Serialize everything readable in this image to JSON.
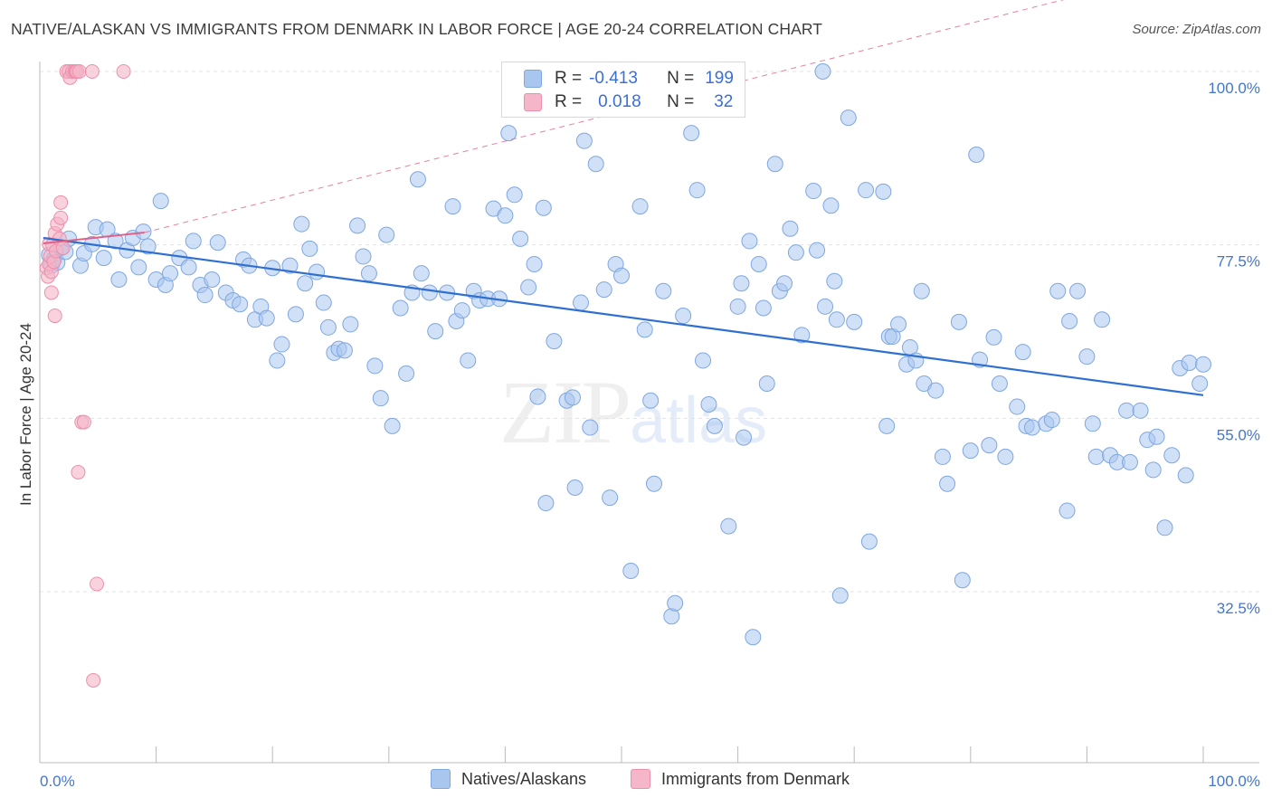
{
  "title": "NATIVE/ALASKAN VS IMMIGRANTS FROM DENMARK IN LABOR FORCE | AGE 20-24 CORRELATION CHART",
  "source": "Source: ZipAtlas.com",
  "watermark": {
    "zip": "ZIP",
    "atlas": "atlas"
  },
  "legend": {
    "r_label": "R =",
    "n_label": "N =",
    "rows": [
      {
        "r": "-0.413",
        "n": "199"
      },
      {
        "r": "0.018",
        "n": "32"
      }
    ]
  },
  "colors": {
    "blue_fill": "#a9c6ee",
    "blue_stroke": "#7fa7e0",
    "blue_line": "#2f6fd1",
    "pink_fill": "#f4b6c8",
    "pink_stroke": "#ec8fab",
    "pink_line": "#e0608a",
    "grid": "#e3e3e3",
    "tick_text": "#4477cc"
  },
  "chart_data": {
    "type": "scatter",
    "title": "NATIVE/ALASKAN VS IMMIGRANTS FROM DENMARK IN LABOR FORCE | AGE 20-24 CORRELATION CHART",
    "xlabel": "",
    "ylabel": "In Labor Force | Age 20-24",
    "xlim": [
      0,
      100
    ],
    "ylim": [
      10,
      102
    ],
    "x_tick_labels": [
      "0.0%",
      "100.0%"
    ],
    "y_ticks": [
      32.5,
      55.0,
      77.5,
      100.0
    ],
    "y_tick_labels": [
      "32.5%",
      "55.0%",
      "77.5%",
      "100.0%"
    ],
    "grid": true,
    "legend_position": "bottom",
    "series": [
      {
        "name": "Natives/Alaskans",
        "trend": {
          "x": [
            0.3,
            100
          ],
          "y": [
            78.4,
            58.0
          ]
        },
        "points": [
          [
            0.8,
            76.2
          ],
          [
            1.0,
            74.8
          ],
          [
            1.2,
            75.6
          ],
          [
            1.5,
            75.2
          ],
          [
            1.8,
            77.1
          ],
          [
            2.2,
            76.6
          ],
          [
            2.5,
            78.3
          ],
          [
            3.5,
            74.8
          ],
          [
            3.8,
            76.4
          ],
          [
            4.5,
            77.6
          ],
          [
            4.8,
            79.8
          ],
          [
            5.5,
            75.8
          ],
          [
            5.8,
            79.5
          ],
          [
            6.5,
            78.0
          ],
          [
            6.8,
            73.0
          ],
          [
            7.5,
            76.8
          ],
          [
            8.0,
            78.4
          ],
          [
            8.5,
            74.6
          ],
          [
            8.9,
            79.2
          ],
          [
            9.3,
            77.3
          ],
          [
            10.0,
            73.0
          ],
          [
            10.4,
            83.2
          ],
          [
            10.8,
            72.3
          ],
          [
            11.2,
            73.8
          ],
          [
            12.0,
            75.8
          ],
          [
            12.8,
            74.6
          ],
          [
            13.2,
            78.0
          ],
          [
            13.8,
            72.3
          ],
          [
            14.2,
            71.0
          ],
          [
            14.8,
            73.0
          ],
          [
            15.3,
            77.8
          ],
          [
            16.0,
            71.3
          ],
          [
            16.6,
            70.3
          ],
          [
            17.2,
            69.8
          ],
          [
            17.5,
            75.6
          ],
          [
            18.0,
            74.8
          ],
          [
            18.5,
            67.8
          ],
          [
            19.0,
            69.5
          ],
          [
            19.5,
            68.0
          ],
          [
            20.0,
            74.5
          ],
          [
            20.4,
            62.5
          ],
          [
            20.8,
            64.6
          ],
          [
            21.5,
            74.8
          ],
          [
            22.0,
            68.5
          ],
          [
            22.5,
            80.2
          ],
          [
            22.8,
            72.5
          ],
          [
            23.2,
            77.0
          ],
          [
            23.8,
            74.0
          ],
          [
            24.4,
            70.0
          ],
          [
            24.8,
            66.8
          ],
          [
            25.3,
            63.5
          ],
          [
            25.7,
            64.0
          ],
          [
            26.2,
            63.8
          ],
          [
            26.7,
            67.2
          ],
          [
            27.3,
            80.0
          ],
          [
            27.8,
            76.0
          ],
          [
            28.3,
            73.8
          ],
          [
            28.8,
            61.8
          ],
          [
            29.3,
            57.6
          ],
          [
            29.8,
            78.8
          ],
          [
            30.3,
            54.0
          ],
          [
            31.0,
            69.3
          ],
          [
            31.5,
            60.8
          ],
          [
            32.0,
            71.3
          ],
          [
            32.5,
            86.0
          ],
          [
            32.8,
            73.8
          ],
          [
            33.5,
            71.3
          ],
          [
            34.0,
            66.3
          ],
          [
            35.0,
            71.3
          ],
          [
            35.5,
            82.5
          ],
          [
            35.8,
            67.6
          ],
          [
            36.3,
            69.0
          ],
          [
            36.8,
            62.5
          ],
          [
            37.3,
            71.5
          ],
          [
            37.8,
            70.3
          ],
          [
            38.5,
            70.5
          ],
          [
            39.0,
            82.2
          ],
          [
            39.5,
            70.5
          ],
          [
            40.0,
            81.3
          ],
          [
            40.3,
            92.0
          ],
          [
            40.8,
            84.0
          ],
          [
            41.3,
            78.3
          ],
          [
            42.0,
            72.0
          ],
          [
            42.5,
            75.0
          ],
          [
            42.8,
            57.8
          ],
          [
            43.3,
            82.3
          ],
          [
            43.5,
            44.0
          ],
          [
            44.2,
            65.0
          ],
          [
            45.3,
            57.3
          ],
          [
            45.8,
            57.7
          ],
          [
            46.0,
            46.0
          ],
          [
            46.5,
            70.0
          ],
          [
            46.8,
            91.0
          ],
          [
            47.3,
            53.8
          ],
          [
            47.8,
            88.0
          ],
          [
            48.5,
            71.7
          ],
          [
            49.0,
            44.7
          ],
          [
            49.5,
            75.0
          ],
          [
            50.0,
            73.5
          ],
          [
            50.8,
            35.2
          ],
          [
            51.6,
            82.5
          ],
          [
            52.0,
            66.5
          ],
          [
            52.5,
            57.3
          ],
          [
            52.8,
            46.5
          ],
          [
            53.6,
            71.5
          ],
          [
            54.3,
            29.3
          ],
          [
            54.6,
            31.0
          ],
          [
            55.3,
            68.3
          ],
          [
            56.0,
            92.0
          ],
          [
            56.5,
            84.6
          ],
          [
            56.6,
            100.0
          ],
          [
            57.0,
            62.5
          ],
          [
            57.5,
            56.8
          ],
          [
            58.0,
            54.0
          ],
          [
            59.2,
            41.0
          ],
          [
            60.0,
            69.5
          ],
          [
            60.3,
            72.5
          ],
          [
            60.5,
            52.5
          ],
          [
            61.0,
            78.0
          ],
          [
            61.3,
            26.6
          ],
          [
            61.8,
            75.0
          ],
          [
            62.2,
            69.3
          ],
          [
            62.5,
            59.5
          ],
          [
            63.2,
            88.0
          ],
          [
            63.6,
            71.5
          ],
          [
            64.0,
            72.5
          ],
          [
            64.5,
            79.6
          ],
          [
            65.0,
            76.5
          ],
          [
            65.5,
            65.8
          ],
          [
            66.5,
            84.5
          ],
          [
            66.8,
            76.8
          ],
          [
            67.3,
            100.0
          ],
          [
            67.5,
            69.5
          ],
          [
            68.0,
            82.6
          ],
          [
            68.3,
            72.8
          ],
          [
            68.5,
            67.8
          ],
          [
            68.8,
            32.0
          ],
          [
            69.5,
            94.0
          ],
          [
            70.0,
            67.5
          ],
          [
            71.0,
            84.6
          ],
          [
            71.3,
            39.0
          ],
          [
            72.5,
            84.4
          ],
          [
            72.8,
            54.0
          ],
          [
            73.0,
            65.6
          ],
          [
            73.3,
            65.6
          ],
          [
            73.8,
            67.2
          ],
          [
            74.5,
            62.0
          ],
          [
            74.8,
            64.2
          ],
          [
            75.3,
            62.5
          ],
          [
            75.8,
            71.5
          ],
          [
            76.0,
            59.5
          ],
          [
            77.0,
            58.6
          ],
          [
            77.6,
            50.0
          ],
          [
            78.0,
            46.5
          ],
          [
            79.0,
            67.5
          ],
          [
            79.3,
            34.0
          ],
          [
            80.0,
            50.8
          ],
          [
            80.5,
            89.2
          ],
          [
            80.8,
            62.6
          ],
          [
            81.6,
            51.5
          ],
          [
            82.0,
            65.5
          ],
          [
            82.5,
            59.5
          ],
          [
            83.0,
            50.0
          ],
          [
            84.0,
            56.5
          ],
          [
            84.5,
            63.6
          ],
          [
            84.8,
            54.0
          ],
          [
            85.3,
            53.8
          ],
          [
            86.5,
            54.3
          ],
          [
            87.0,
            54.8
          ],
          [
            87.5,
            71.5
          ],
          [
            88.3,
            43.0
          ],
          [
            88.5,
            67.6
          ],
          [
            89.2,
            71.5
          ],
          [
            90.0,
            63.0
          ],
          [
            90.5,
            54.3
          ],
          [
            90.8,
            50.0
          ],
          [
            91.3,
            67.8
          ],
          [
            92.0,
            50.2
          ],
          [
            92.6,
            49.3
          ],
          [
            93.4,
            56.0
          ],
          [
            93.7,
            49.3
          ],
          [
            94.6,
            56.0
          ],
          [
            95.2,
            52.2
          ],
          [
            95.7,
            48.3
          ],
          [
            96.0,
            52.6
          ],
          [
            96.7,
            40.8
          ],
          [
            97.3,
            50.2
          ],
          [
            98.0,
            61.5
          ],
          [
            98.5,
            47.6
          ],
          [
            98.8,
            62.2
          ],
          [
            99.7,
            59.5
          ],
          [
            100.0,
            62.0
          ]
        ]
      },
      {
        "name": "Immigrants from Denmark",
        "trend": {
          "x": [
            0.3,
            9.0
          ],
          "y": [
            77.7,
            79.1
          ]
        },
        "points": [
          [
            0.6,
            74.5
          ],
          [
            0.7,
            73.4
          ],
          [
            0.8,
            75.0
          ],
          [
            0.8,
            77.6
          ],
          [
            0.9,
            76.0
          ],
          [
            1.0,
            74.0
          ],
          [
            1.0,
            71.3
          ],
          [
            1.1,
            77.5
          ],
          [
            1.2,
            75.3
          ],
          [
            1.3,
            79.0
          ],
          [
            1.3,
            68.3
          ],
          [
            1.4,
            76.7
          ],
          [
            1.5,
            80.2
          ],
          [
            1.7,
            78.3
          ],
          [
            1.8,
            81.0
          ],
          [
            1.8,
            83.0
          ],
          [
            2.0,
            77.1
          ],
          [
            2.3,
            100.0
          ],
          [
            2.5,
            100.0
          ],
          [
            2.6,
            99.2
          ],
          [
            2.8,
            100.0
          ],
          [
            3.0,
            100.0
          ],
          [
            3.1,
            100.0
          ],
          [
            3.2,
            100.0
          ],
          [
            3.3,
            48.0
          ],
          [
            3.4,
            100.0
          ],
          [
            3.6,
            54.5
          ],
          [
            3.8,
            54.5
          ],
          [
            4.5,
            100.0
          ],
          [
            4.6,
            21.0
          ],
          [
            4.9,
            33.5
          ],
          [
            7.2,
            100.0
          ]
        ]
      }
    ]
  }
}
